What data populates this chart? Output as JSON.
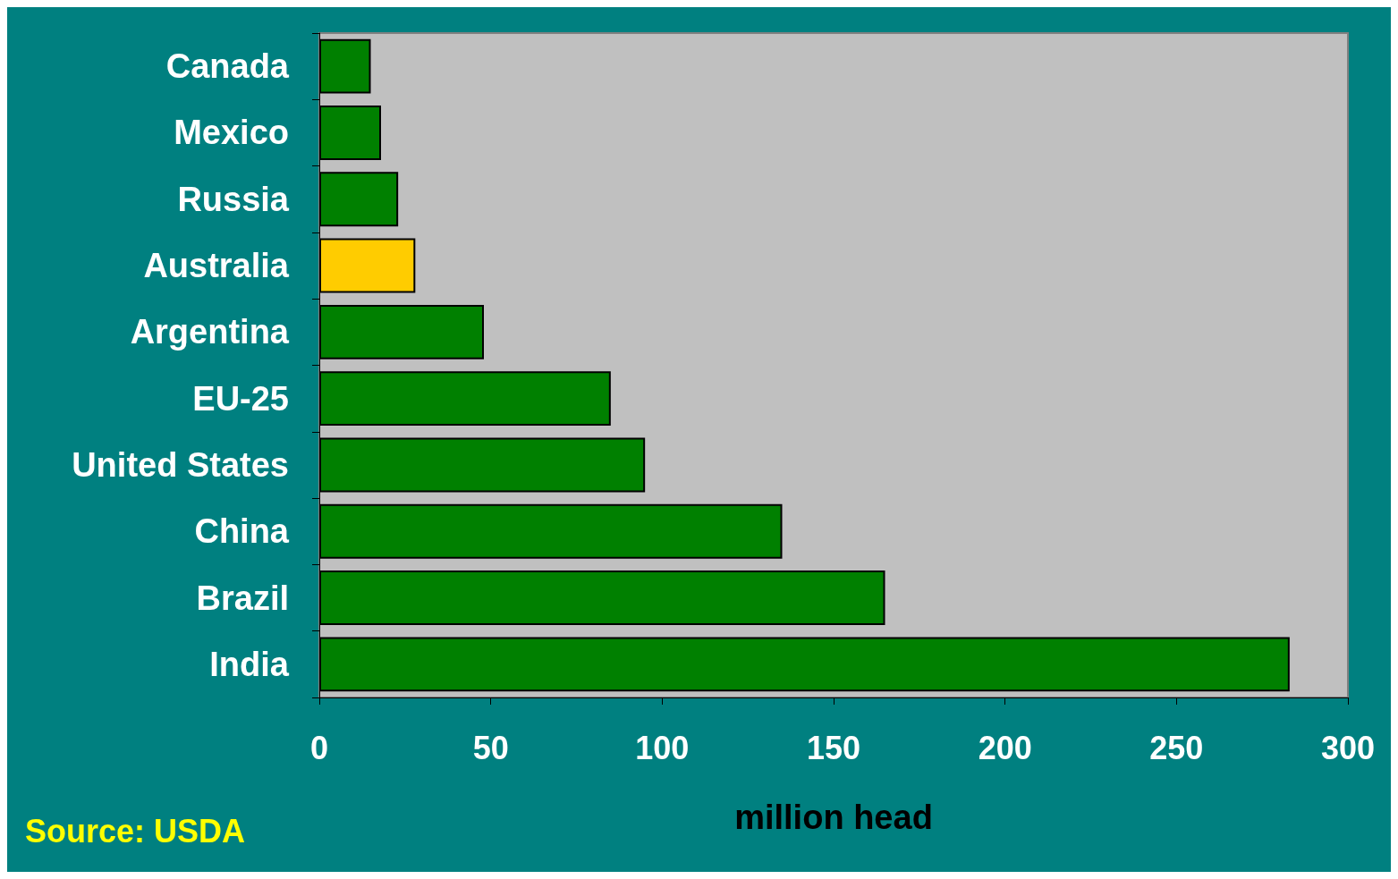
{
  "chart_data": {
    "type": "bar",
    "orientation": "horizontal",
    "categories": [
      "Canada",
      "Mexico",
      "Russia",
      "Australia",
      "Argentina",
      "EU-25",
      "United States",
      "China",
      "Brazil",
      "India"
    ],
    "values": [
      15,
      18,
      23,
      28,
      48,
      85,
      95,
      135,
      165,
      283
    ],
    "colors": [
      "#008000",
      "#008000",
      "#008000",
      "#ffcc00",
      "#008000",
      "#008000",
      "#008000",
      "#008000",
      "#008000",
      "#008000"
    ],
    "xlabel": "million head",
    "xlim": [
      0,
      300
    ],
    "xticks": [
      0,
      50,
      100,
      150,
      200,
      250,
      300
    ],
    "annotations": [
      "Source: USDA"
    ]
  }
}
